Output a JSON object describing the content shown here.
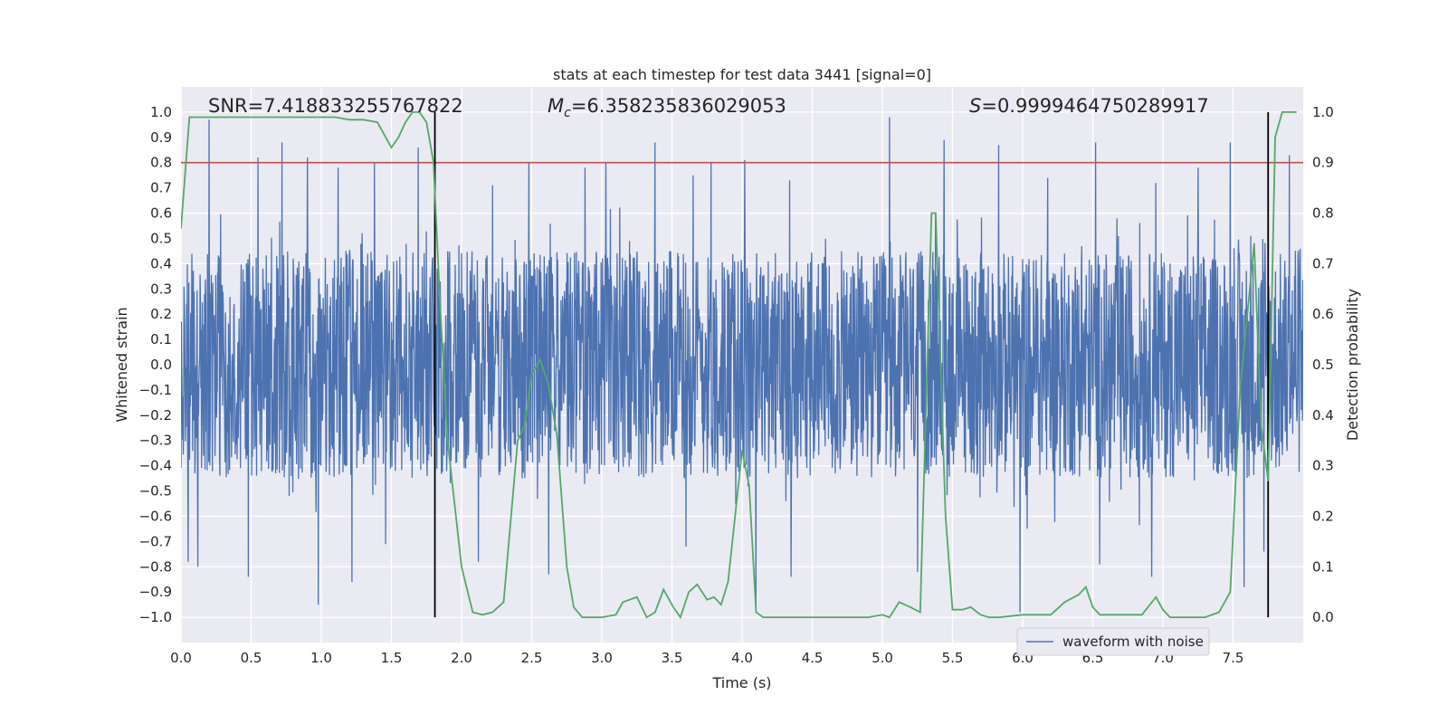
{
  "chart_data": {
    "type": "line",
    "title": "stats at each timestep for test data 3441 [signal=0]",
    "xlabel": "Time (s)",
    "ylabel": "Whitened strain",
    "y2label": "Detection probability",
    "xlim": [
      0.0,
      8.0
    ],
    "ylim": [
      -1.1,
      1.1
    ],
    "y2lim": [
      -0.05,
      1.05
    ],
    "xticks": [
      "0.0",
      "0.5",
      "1.0",
      "1.5",
      "2.0",
      "2.5",
      "3.0",
      "3.5",
      "4.0",
      "4.5",
      "5.0",
      "5.5",
      "6.0",
      "6.5",
      "7.0",
      "7.5"
    ],
    "yticks": [
      "1.0",
      "0.9",
      "0.8",
      "0.7",
      "0.6",
      "0.5",
      "0.4",
      "0.3",
      "0.2",
      "0.1",
      "0.0",
      "−0.1",
      "−0.2",
      "−0.3",
      "−0.4",
      "−0.5",
      "−0.6",
      "−0.7",
      "−0.8",
      "−0.9",
      "−1.0"
    ],
    "y2ticks": [
      "1.0",
      "0.9",
      "0.8",
      "0.7",
      "0.6",
      "0.5",
      "0.4",
      "0.3",
      "0.2",
      "0.1",
      "0.0"
    ],
    "grid": true,
    "legend": {
      "label": "waveform with noise",
      "placement": "lower-right"
    },
    "annotations": {
      "snr": "SNR=7.418833255767822",
      "mc_symbol": "M",
      "mc_sub": "c",
      "mc_value": "=6.358235836029053",
      "s_symbol": "S",
      "s_value": "=0.9999464750289917"
    },
    "threshold": {
      "value": 0.9,
      "axis": "right",
      "color": "#c44e52"
    },
    "vertical_lines": [
      1.81,
      7.75
    ],
    "waveform": {
      "name": "waveform with noise",
      "color": "#4c72b0",
      "duration_s": 8.0,
      "envelope": 0.45,
      "upper_peaks": [
        [
          0.05,
          0.76
        ],
        [
          0.2,
          0.97
        ],
        [
          0.55,
          0.82
        ],
        [
          0.72,
          0.88
        ],
        [
          0.9,
          0.82
        ],
        [
          1.12,
          0.78
        ],
        [
          1.38,
          0.8
        ],
        [
          1.69,
          0.86
        ],
        [
          2.22,
          0.71
        ],
        [
          2.48,
          0.8
        ],
        [
          2.88,
          0.78
        ],
        [
          3.03,
          0.8
        ],
        [
          3.38,
          0.88
        ],
        [
          3.65,
          0.75
        ],
        [
          3.78,
          0.8
        ],
        [
          4.02,
          0.81
        ],
        [
          4.34,
          0.73
        ],
        [
          5.05,
          0.98
        ],
        [
          5.44,
          0.89
        ],
        [
          5.83,
          0.87
        ],
        [
          5.98,
          0.89
        ],
        [
          6.18,
          0.74
        ],
        [
          6.52,
          0.88
        ],
        [
          6.95,
          0.72
        ],
        [
          7.25,
          0.78
        ],
        [
          7.48,
          0.88
        ],
        [
          7.9,
          0.83
        ]
      ],
      "lower_peaks": [
        [
          0.05,
          -0.78
        ],
        [
          0.12,
          -0.8
        ],
        [
          0.48,
          -0.84
        ],
        [
          0.98,
          -0.95
        ],
        [
          1.22,
          -0.86
        ],
        [
          1.46,
          -0.71
        ],
        [
          2.12,
          -0.78
        ],
        [
          2.62,
          -0.83
        ],
        [
          3.6,
          -0.72
        ],
        [
          4.1,
          -0.95
        ],
        [
          4.35,
          -0.84
        ],
        [
          5.25,
          -0.82
        ],
        [
          5.98,
          -0.98
        ],
        [
          6.55,
          -0.79
        ],
        [
          6.92,
          -0.84
        ],
        [
          7.58,
          -0.88
        ],
        [
          7.72,
          -0.74
        ]
      ]
    },
    "probability": {
      "name": "detection probability",
      "color": "#55a868",
      "x": [
        0.0,
        0.06,
        0.1,
        0.2,
        0.4,
        0.6,
        0.8,
        1.0,
        1.1,
        1.2,
        1.3,
        1.4,
        1.5,
        1.55,
        1.6,
        1.65,
        1.7,
        1.75,
        1.8,
        1.85,
        1.9,
        2.0,
        2.08,
        2.15,
        2.22,
        2.3,
        2.4,
        2.45,
        2.5,
        2.56,
        2.62,
        2.68,
        2.75,
        2.8,
        2.86,
        2.93,
        3.0,
        3.1,
        3.15,
        3.25,
        3.32,
        3.38,
        3.44,
        3.51,
        3.56,
        3.62,
        3.68,
        3.75,
        3.8,
        3.85,
        3.9,
        4.0,
        4.05,
        4.1,
        4.15,
        4.2,
        4.4,
        4.6,
        4.8,
        4.9,
        5.0,
        5.05,
        5.12,
        5.2,
        5.27,
        5.35,
        5.38,
        5.45,
        5.5,
        5.57,
        5.63,
        5.7,
        5.76,
        5.83,
        6.0,
        6.2,
        6.3,
        6.4,
        6.45,
        6.5,
        6.55,
        6.6,
        6.7,
        6.85,
        6.95,
        7.0,
        7.05,
        7.1,
        7.2,
        7.3,
        7.4,
        7.48,
        7.55,
        7.65,
        7.7,
        7.75,
        7.8,
        7.85,
        7.9,
        7.95
      ],
      "values": [
        0.77,
        0.99,
        0.99,
        0.99,
        0.99,
        0.99,
        0.99,
        0.99,
        0.99,
        0.985,
        0.985,
        0.98,
        0.93,
        0.95,
        0.98,
        1.0,
        1.0,
        0.98,
        0.9,
        0.6,
        0.35,
        0.1,
        0.01,
        0.005,
        0.01,
        0.03,
        0.35,
        0.38,
        0.48,
        0.51,
        0.46,
        0.36,
        0.1,
        0.02,
        0.0,
        0.0,
        0.0,
        0.005,
        0.03,
        0.04,
        0.0,
        0.01,
        0.055,
        0.02,
        0.0,
        0.05,
        0.065,
        0.035,
        0.04,
        0.025,
        0.07,
        0.33,
        0.26,
        0.01,
        0.0,
        0.0,
        0.0,
        0.0,
        0.0,
        0.0,
        0.005,
        0.0,
        0.03,
        0.02,
        0.01,
        0.8,
        0.8,
        0.2,
        0.015,
        0.015,
        0.02,
        0.005,
        0.0,
        0.0,
        0.005,
        0.005,
        0.03,
        0.045,
        0.06,
        0.02,
        0.005,
        0.005,
        0.005,
        0.005,
        0.04,
        0.015,
        0.0,
        0.0,
        0.0,
        0.0,
        0.01,
        0.05,
        0.45,
        0.74,
        0.38,
        0.27,
        0.95,
        1.0,
        1.0,
        1.0
      ]
    }
  }
}
